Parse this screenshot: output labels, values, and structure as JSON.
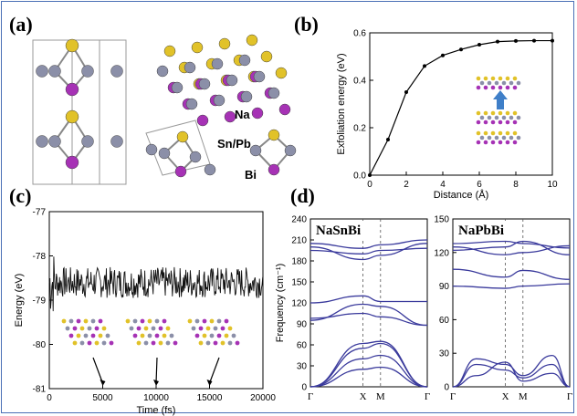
{
  "panels": {
    "a": {
      "label": "(a)",
      "atoms": {
        "na": "Na",
        "snpb": "Sn/Pb",
        "bi": "Bi"
      }
    },
    "b": {
      "label": "(b)"
    },
    "c": {
      "label": "(c)"
    },
    "d": {
      "label": "(d)"
    }
  },
  "colors": {
    "na": "#e1c229",
    "snpb": "#8b8fa8",
    "bi": "#a632b5",
    "band": "#3a3a9c",
    "arrow": "#3f7fc8",
    "frame": "#4a6fb5"
  },
  "chart_data": [
    {
      "panel": "b",
      "type": "line",
      "xlabel": "Distance (Å)",
      "ylabel": "Exfoliation energy (eV)",
      "xlim": [
        0,
        10
      ],
      "ylim": [
        0,
        0.6
      ],
      "xticks": [
        "0",
        "2",
        "4",
        "6",
        "8",
        "10"
      ],
      "yticks": [
        "0.0",
        "0.2",
        "0.4",
        "0.6"
      ],
      "x": [
        0,
        1,
        2,
        3,
        4,
        5,
        6,
        7,
        8,
        9,
        10
      ],
      "y": [
        0.0,
        0.15,
        0.35,
        0.46,
        0.505,
        0.53,
        0.55,
        0.563,
        0.566,
        0.567,
        0.567
      ],
      "marker": "dot",
      "inset": "bilayer-exfoliation-sketch"
    },
    {
      "panel": "c",
      "type": "line",
      "xlabel": "Time (fs)",
      "ylabel": "Energy (eV)",
      "xlim": [
        0,
        20000
      ],
      "ylim": [
        -81,
        -77
      ],
      "xticks": [
        "0",
        "5000",
        "10000",
        "15000",
        "20000"
      ],
      "yticks": [
        "-77",
        "-78",
        "-79",
        "-80",
        "-81"
      ],
      "mean_energy": -78.6,
      "fluctuation": 0.35,
      "snapshots_at": [
        5000,
        10000,
        15000
      ]
    },
    {
      "panel": "d-left",
      "type": "line",
      "title": "NaSnBi",
      "ylabel": "Frequency (cm⁻¹)",
      "ylim": [
        0,
        240
      ],
      "yticks": [
        "0",
        "30",
        "60",
        "90",
        "120",
        "150",
        "180",
        "210",
        "240"
      ],
      "path": [
        "Γ",
        "X",
        "M",
        "Γ"
      ],
      "series": [
        {
          "values": [
            [
              0,
              0
            ],
            [
              0.45,
              55
            ],
            [
              0.6,
              62
            ],
            [
              1,
              0
            ]
          ]
        },
        {
          "values": [
            [
              0,
              0
            ],
            [
              0.45,
              40
            ],
            [
              0.6,
              45
            ],
            [
              1,
              0
            ]
          ]
        },
        {
          "values": [
            [
              0,
              0
            ],
            [
              0.45,
              62
            ],
            [
              0.6,
              65
            ],
            [
              1,
              0
            ]
          ]
        },
        {
          "values": [
            [
              0,
              0
            ],
            [
              0.45,
              25
            ],
            [
              0.6,
              28
            ],
            [
              1,
              0
            ]
          ]
        },
        {
          "values": [
            [
              0,
              98
            ],
            [
              0.45,
              105
            ],
            [
              0.6,
              100
            ],
            [
              1,
              88
            ]
          ]
        },
        {
          "values": [
            [
              0,
              120
            ],
            [
              0.45,
              130
            ],
            [
              0.6,
              122
            ],
            [
              1,
              122
            ]
          ]
        },
        {
          "values": [
            [
              0,
              95
            ],
            [
              0.45,
              118
            ],
            [
              0.6,
              115
            ],
            [
              1,
              88
            ]
          ]
        },
        {
          "values": [
            [
              0,
              195
            ],
            [
              0.45,
              190
            ],
            [
              0.6,
              195
            ],
            [
              1,
              198
            ]
          ]
        },
        {
          "values": [
            [
              0,
              205
            ],
            [
              0.45,
              198
            ],
            [
              0.6,
              203
            ],
            [
              1,
              210
            ]
          ]
        },
        {
          "values": [
            [
              0,
              200
            ],
            [
              0.45,
              182
            ],
            [
              0.6,
              188
            ],
            [
              1,
              205
            ]
          ]
        }
      ]
    },
    {
      "panel": "d-right",
      "type": "line",
      "title": "NaPbBi",
      "ylim": [
        0,
        150
      ],
      "yticks": [
        "0",
        "30",
        "60",
        "90",
        "120",
        "150"
      ],
      "path": [
        "Γ",
        "X",
        "M",
        "Γ"
      ],
      "series": [
        {
          "values": [
            [
              0,
              0
            ],
            [
              0.2,
              25
            ],
            [
              0.45,
              20
            ],
            [
              0.6,
              10
            ],
            [
              0.85,
              28
            ],
            [
              1,
              0
            ]
          ]
        },
        {
          "values": [
            [
              0,
              0
            ],
            [
              0.2,
              20
            ],
            [
              0.45,
              15
            ],
            [
              0.6,
              8
            ],
            [
              0.85,
              20
            ],
            [
              1,
              0
            ]
          ]
        },
        {
          "values": [
            [
              0,
              0
            ],
            [
              0.2,
              10
            ],
            [
              0.45,
              22
            ],
            [
              0.6,
              5
            ],
            [
              0.85,
              12
            ],
            [
              1,
              0
            ]
          ]
        },
        {
          "values": [
            [
              0,
              90
            ],
            [
              0.45,
              88
            ],
            [
              0.6,
              90
            ],
            [
              1,
              92
            ]
          ]
        },
        {
          "values": [
            [
              0,
              105
            ],
            [
              0.45,
              98
            ],
            [
              0.6,
              104
            ],
            [
              1,
              96
            ]
          ]
        },
        {
          "values": [
            [
              0,
              122
            ],
            [
              0.45,
              125
            ],
            [
              0.6,
              130
            ],
            [
              1,
              118
            ]
          ]
        },
        {
          "values": [
            [
              0,
              128
            ],
            [
              0.45,
              130
            ],
            [
              0.6,
              128
            ],
            [
              1,
              124
            ]
          ]
        },
        {
          "values": [
            [
              0,
              125
            ],
            [
              0.45,
              118
            ],
            [
              0.6,
              120
            ],
            [
              1,
              126
            ]
          ]
        }
      ]
    }
  ]
}
